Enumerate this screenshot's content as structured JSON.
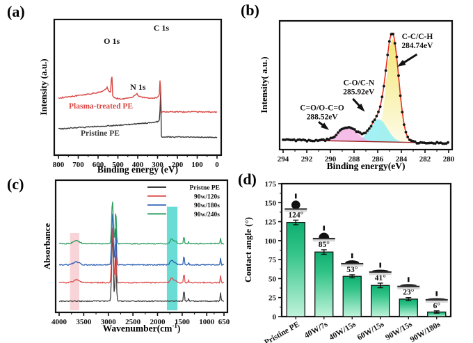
{
  "figure": {
    "background": "#ffffff"
  },
  "chart_data": [
    {
      "id": "a",
      "label": "(a)",
      "type": "line",
      "xlabel": "Binding energy (eV)",
      "ylabel": "Intensity (a.u.)",
      "x_ticks": [
        800,
        700,
        600,
        500,
        400,
        300,
        200,
        100,
        0
      ],
      "x_range": [
        800,
        0
      ],
      "peak_annotations": [
        {
          "text": "O 1s",
          "ev": 531,
          "y": 63
        },
        {
          "text": "N 1s",
          "ev": 399,
          "y": 129
        },
        {
          "text": "C 1s",
          "ev": 281,
          "y": 44
        }
      ],
      "series": [
        {
          "name": "Pristine PE",
          "color": "#3b3b3b",
          "points": [
            [
              800,
              0.193
            ],
            [
              750,
              0.198
            ],
            [
              700,
              0.203
            ],
            [
              650,
              0.208
            ],
            [
              600,
              0.212
            ],
            [
              550,
              0.216
            ],
            [
              500,
              0.22
            ],
            [
              450,
              0.226
            ],
            [
              400,
              0.231
            ],
            [
              360,
              0.236
            ],
            [
              330,
              0.24
            ],
            [
              310,
              0.243
            ],
            [
              300,
              0.246
            ],
            [
              294,
              0.252
            ],
            [
              290,
              0.262
            ],
            [
              288,
              0.275
            ],
            [
              286.5,
              0.56
            ],
            [
              285.5,
              0.9
            ],
            [
              284.5,
              0.56
            ],
            [
              283.5,
              0.28
            ],
            [
              282.5,
              0.18
            ],
            [
              281,
              0.14
            ],
            [
              278,
              0.133
            ],
            [
              250,
              0.135
            ],
            [
              220,
              0.132
            ],
            [
              190,
              0.135
            ],
            [
              160,
              0.132
            ],
            [
              130,
              0.134
            ],
            [
              100,
              0.131
            ],
            [
              70,
              0.133
            ],
            [
              40,
              0.13
            ],
            [
              0,
              0.131
            ]
          ]
        },
        {
          "name": "Plasma-treated PE",
          "color": "#d84743",
          "points": [
            [
              800,
              0.42
            ],
            [
              760,
              0.428
            ],
            [
              720,
              0.435
            ],
            [
              680,
              0.442
            ],
            [
              640,
              0.452
            ],
            [
              600,
              0.462
            ],
            [
              575,
              0.472
            ],
            [
              560,
              0.49
            ],
            [
              553,
              0.502
            ],
            [
              549,
              0.478
            ],
            [
              543,
              0.468
            ],
            [
              537,
              0.466
            ],
            [
              534,
              0.47
            ],
            [
              531.5,
              0.8
            ],
            [
              529,
              0.468
            ],
            [
              526,
              0.438
            ],
            [
              520,
              0.425
            ],
            [
              505,
              0.418
            ],
            [
              480,
              0.415
            ],
            [
              455,
              0.418
            ],
            [
              430,
              0.425
            ],
            [
              412,
              0.44
            ],
            [
              403,
              0.452
            ],
            [
              398,
              0.44
            ],
            [
              385,
              0.428
            ],
            [
              360,
              0.422
            ],
            [
              330,
              0.42
            ],
            [
              305,
              0.424
            ],
            [
              297,
              0.432
            ],
            [
              291,
              0.445
            ],
            [
              288,
              0.52
            ],
            [
              286,
              0.74
            ],
            [
              284.5,
              0.52
            ],
            [
              283.5,
              0.38
            ],
            [
              282.5,
              0.32
            ],
            [
              281,
              0.31
            ],
            [
              278,
              0.318
            ],
            [
              260,
              0.32
            ],
            [
              230,
              0.318
            ],
            [
              200,
              0.32
            ],
            [
              160,
              0.318
            ],
            [
              120,
              0.32
            ],
            [
              80,
              0.318
            ],
            [
              40,
              0.32
            ],
            [
              0,
              0.316
            ]
          ]
        }
      ]
    },
    {
      "id": "b",
      "label": "(b)",
      "type": "line",
      "xlabel": "Binding energy(eV)",
      "ylabel": "Intensity( a.u.)",
      "x_ticks": [
        294,
        292,
        290,
        288,
        286,
        284,
        282,
        280
      ],
      "x_range": [
        294,
        280
      ],
      "baseline": {
        "y_left": 0.075,
        "y_right": 0.05,
        "color": "#9b1f1f"
      },
      "envelope_color": "#e2301f",
      "marker_color": "#141414",
      "peaks": [
        {
          "name": "C-C/C-H",
          "binding_energy_eV": 284.74,
          "amp": 0.8,
          "sigma": 0.52,
          "fill": "#f3e66e",
          "fill_light": "#fdfbe8"
        },
        {
          "name": "C-O/C-N",
          "binding_energy_eV": 285.92,
          "amp": 0.175,
          "sigma": 0.72,
          "fill": "#8deef2"
        },
        {
          "name": "C=O/O-C=O",
          "binding_energy_eV": 288.52,
          "amp": 0.11,
          "sigma": 0.78,
          "fill": "#f2aee2"
        }
      ],
      "annotations": [
        {
          "lines": [
            "C-C/C-H",
            "284.74eV"
          ],
          "label_ev": 282.65,
          "label_yrel": 0.86,
          "arrow": [
            282.68,
            0.74,
            284.15,
            0.655
          ]
        },
        {
          "lines": [
            "C-O/C-N",
            "285.92eV"
          ],
          "label_ev": 287.6,
          "label_yrel": 0.5,
          "arrow": [
            288.1,
            0.395,
            287.25,
            0.31
          ]
        },
        {
          "lines": [
            "C=O/O-C=O",
            "288.52eV"
          ],
          "label_ev": 290.7,
          "label_yrel": 0.305,
          "arrow": [
            291.0,
            0.215,
            290.3,
            0.165
          ]
        }
      ]
    },
    {
      "id": "c",
      "label": "(c)",
      "type": "line",
      "xlabel_parts": {
        "pre": "Wavenumber(cm",
        "sup": "-1",
        "post": ")"
      },
      "ylabel": "Absorbance",
      "x_ticks": [
        4000,
        3500,
        3000,
        2500,
        2000,
        1500,
        1000,
        650
      ],
      "x_range": [
        4000,
        650
      ],
      "highlight_bands": [
        {
          "from": 3780,
          "to": 3590,
          "color": "#f6cdd1",
          "top_rel": 0.6
        },
        {
          "from": 1810,
          "to": 1595,
          "color": "#58d8d0",
          "top_rel": 0.8
        }
      ],
      "base_peaks": [
        {
          "c": 2916,
          "s": 16,
          "h": 1.0
        },
        {
          "c": 2849,
          "s": 12,
          "h": 0.78
        },
        {
          "c": 1463,
          "s": 10,
          "h": 0.17
        },
        {
          "c": 1368,
          "s": 8,
          "h": 0.04
        },
        {
          "c": 719,
          "s": 8,
          "h": 0.13
        }
      ],
      "treated_peaks": [
        {
          "c": 3650,
          "s": 60,
          "h": 0.022
        },
        {
          "c": 1714,
          "s": 30,
          "h": 0.035
        },
        {
          "c": 1640,
          "s": 25,
          "h": 0.018
        }
      ],
      "series": [
        {
          "name": "Pristne PE",
          "color": "#3c3c3c",
          "offset": 0.085,
          "scale": 0.51,
          "treated": false
        },
        {
          "name": "90w/120s",
          "color": "#dd4e4e",
          "offset": 0.225,
          "scale": 0.43,
          "treated": true
        },
        {
          "name": "90w/180s",
          "color": "#2d61b4",
          "offset": 0.36,
          "scale": 0.4,
          "treated": true
        },
        {
          "name": "90w/240s",
          "color": "#2f9e62",
          "offset": 0.52,
          "scale": 0.33,
          "treated": true
        }
      ]
    },
    {
      "id": "d",
      "label": "(d)",
      "type": "bar",
      "ylabel": "Contact angle (°)",
      "y_ticks": [
        0,
        25,
        50,
        75,
        100,
        125,
        150,
        175
      ],
      "ylim": [
        0,
        175
      ],
      "bar_gradient": [
        "#0fae70",
        "#2fc286",
        "#bff3da"
      ],
      "bar_border": "#111111",
      "bars": [
        {
          "category": "Pristine PE",
          "value": 124,
          "error": 3,
          "label": "124°"
        },
        {
          "category": "40W/7s",
          "value": 85,
          "error": 3,
          "label": "85°"
        },
        {
          "category": "40W/15s",
          "value": 53,
          "error": 2,
          "label": "53°"
        },
        {
          "category": "60W/15s",
          "value": 41,
          "error": 3,
          "label": "41°"
        },
        {
          "category": "90W/15s",
          "value": 23,
          "error": 2,
          "label": "23°"
        },
        {
          "category": "90W/180s",
          "value": 6,
          "error": 1.5,
          "label": "6°"
        }
      ],
      "droplet_icon": {
        "needle_color": "#111111",
        "drop_color": "#111111",
        "surface_dark": "#2e2e2e",
        "surface_light": "#d8d8d8"
      }
    }
  ]
}
